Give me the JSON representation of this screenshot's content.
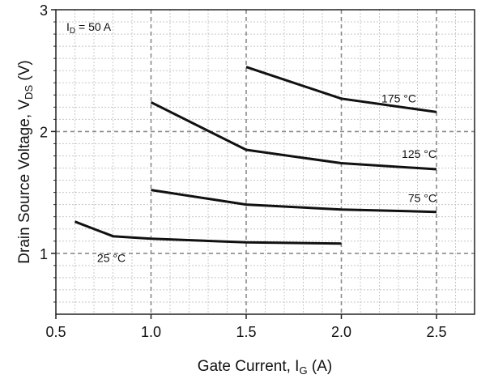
{
  "chart_data": {
    "type": "line",
    "xlabel": {
      "main": "Gate Current, I",
      "sub": "G",
      "tail": " (A)"
    },
    "ylabel": {
      "main": "Drain Source Voltage, V",
      "sub": "DS",
      "tail": " (V)"
    },
    "annotation": {
      "main": "I",
      "sub": "D",
      "tail": " = 50 A"
    },
    "xlim": [
      0.5,
      2.7
    ],
    "ylim": [
      0.5,
      3.0
    ],
    "x_ticks": [
      "0.5",
      "1.0",
      "1.5",
      "2.0",
      "2.5"
    ],
    "y_ticks": [
      "1",
      "2",
      "3"
    ],
    "grid": true,
    "series": [
      {
        "name": "25 °C",
        "x": [
          0.6,
          0.8,
          1.0,
          1.5,
          2.0
        ],
        "y": [
          1.26,
          1.14,
          1.12,
          1.09,
          1.08
        ]
      },
      {
        "name": "75 °C",
        "x": [
          1.0,
          1.5,
          2.0,
          2.5
        ],
        "y": [
          1.52,
          1.4,
          1.36,
          1.34
        ]
      },
      {
        "name": "125 °C",
        "x": [
          1.0,
          1.5,
          2.0,
          2.5
        ],
        "y": [
          2.24,
          1.85,
          1.74,
          1.69
        ]
      },
      {
        "name": "175 °C",
        "x": [
          1.5,
          2.0,
          2.5
        ],
        "y": [
          2.53,
          2.27,
          2.16
        ]
      }
    ]
  }
}
